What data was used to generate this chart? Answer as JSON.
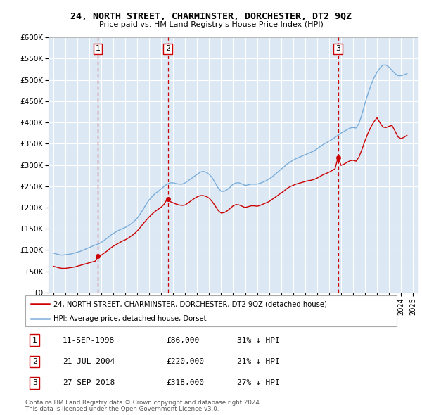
{
  "title": "24, NORTH STREET, CHARMINSTER, DORCHESTER, DT2 9QZ",
  "subtitle": "Price paid vs. HM Land Registry's House Price Index (HPI)",
  "ylim": [
    0,
    600000
  ],
  "yticks": [
    0,
    50000,
    100000,
    150000,
    200000,
    250000,
    300000,
    350000,
    400000,
    450000,
    500000,
    550000,
    600000
  ],
  "ytick_labels": [
    "£0",
    "£50K",
    "£100K",
    "£150K",
    "£200K",
    "£250K",
    "£300K",
    "£350K",
    "£400K",
    "£450K",
    "£500K",
    "£550K",
    "£600K"
  ],
  "xlim_start": 1994.6,
  "xlim_end": 2025.4,
  "plot_bg_color": "#dce9f5",
  "grid_color": "#ffffff",
  "red_line_color": "#cc0000",
  "blue_line_color": "#7aacda",
  "vline_color": "#cc0000",
  "transactions": [
    {
      "num": 1,
      "date": "11-SEP-1998",
      "year": 1998.7,
      "price": 86000,
      "pct": "31%",
      "dir": "↓"
    },
    {
      "num": 2,
      "date": "21-JUL-2004",
      "year": 2004.55,
      "price": 220000,
      "pct": "21%",
      "dir": "↓"
    },
    {
      "num": 3,
      "date": "27-SEP-2018",
      "year": 2018.75,
      "price": 318000,
      "pct": "27%",
      "dir": "↓"
    }
  ],
  "legend_red_label": "24, NORTH STREET, CHARMINSTER, DORCHESTER, DT2 9QZ (detached house)",
  "legend_blue_label": "HPI: Average price, detached house, Dorset",
  "footer1": "Contains HM Land Registry data © Crown copyright and database right 2024.",
  "footer2": "This data is licensed under the Open Government Licence v3.0.",
  "hpi_years": [
    1995.0,
    1995.25,
    1995.5,
    1995.75,
    1996.0,
    1996.25,
    1996.5,
    1996.75,
    1997.0,
    1997.25,
    1997.5,
    1997.75,
    1998.0,
    1998.25,
    1998.5,
    1998.75,
    1999.0,
    1999.25,
    1999.5,
    1999.75,
    2000.0,
    2000.25,
    2000.5,
    2000.75,
    2001.0,
    2001.25,
    2001.5,
    2001.75,
    2002.0,
    2002.25,
    2002.5,
    2002.75,
    2003.0,
    2003.25,
    2003.5,
    2003.75,
    2004.0,
    2004.25,
    2004.5,
    2004.75,
    2005.0,
    2005.25,
    2005.5,
    2005.75,
    2006.0,
    2006.25,
    2006.5,
    2006.75,
    2007.0,
    2007.25,
    2007.5,
    2007.75,
    2008.0,
    2008.25,
    2008.5,
    2008.75,
    2009.0,
    2009.25,
    2009.5,
    2009.75,
    2010.0,
    2010.25,
    2010.5,
    2010.75,
    2011.0,
    2011.25,
    2011.5,
    2011.75,
    2012.0,
    2012.25,
    2012.5,
    2012.75,
    2013.0,
    2013.25,
    2013.5,
    2013.75,
    2014.0,
    2014.25,
    2014.5,
    2014.75,
    2015.0,
    2015.25,
    2015.5,
    2015.75,
    2016.0,
    2016.25,
    2016.5,
    2016.75,
    2017.0,
    2017.25,
    2017.5,
    2017.75,
    2018.0,
    2018.25,
    2018.5,
    2018.75,
    2019.0,
    2019.25,
    2019.5,
    2019.75,
    2020.0,
    2020.25,
    2020.5,
    2020.75,
    2021.0,
    2021.25,
    2021.5,
    2021.75,
    2022.0,
    2022.25,
    2022.5,
    2022.75,
    2023.0,
    2023.25,
    2023.5,
    2023.75,
    2024.0,
    2024.25,
    2024.5
  ],
  "hpi_values": [
    93000,
    91000,
    89000,
    88000,
    89000,
    90000,
    91000,
    93000,
    95000,
    97000,
    100000,
    103000,
    106000,
    109000,
    112000,
    114000,
    118000,
    123000,
    128000,
    134000,
    139000,
    143000,
    147000,
    150000,
    153000,
    157000,
    162000,
    168000,
    175000,
    185000,
    196000,
    208000,
    218000,
    226000,
    233000,
    238000,
    244000,
    250000,
    255000,
    258000,
    258000,
    256000,
    255000,
    255000,
    258000,
    263000,
    268000,
    273000,
    278000,
    283000,
    285000,
    283000,
    278000,
    270000,
    258000,
    246000,
    238000,
    238000,
    242000,
    248000,
    255000,
    258000,
    258000,
    255000,
    252000,
    253000,
    255000,
    255000,
    255000,
    257000,
    260000,
    263000,
    267000,
    272000,
    278000,
    284000,
    290000,
    296000,
    302000,
    307000,
    311000,
    315000,
    318000,
    321000,
    324000,
    327000,
    330000,
    333000,
    338000,
    343000,
    348000,
    352000,
    356000,
    360000,
    365000,
    370000,
    375000,
    379000,
    383000,
    387000,
    388000,
    387000,
    398000,
    420000,
    445000,
    468000,
    488000,
    505000,
    518000,
    528000,
    535000,
    535000,
    530000,
    522000,
    515000,
    510000,
    510000,
    512000,
    515000
  ],
  "red_years": [
    1995.0,
    1995.25,
    1995.5,
    1995.75,
    1996.0,
    1996.25,
    1996.5,
    1996.75,
    1997.0,
    1997.25,
    1997.5,
    1997.75,
    1998.0,
    1998.25,
    1998.5,
    1998.75,
    1999.0,
    1999.25,
    1999.5,
    1999.75,
    2000.0,
    2000.25,
    2000.5,
    2000.75,
    2001.0,
    2001.25,
    2001.5,
    2001.75,
    2002.0,
    2002.25,
    2002.5,
    2002.75,
    2003.0,
    2003.25,
    2003.5,
    2003.75,
    2004.0,
    2004.25,
    2004.5,
    2004.75,
    2005.0,
    2005.25,
    2005.5,
    2005.75,
    2006.0,
    2006.25,
    2006.5,
    2006.75,
    2007.0,
    2007.25,
    2007.5,
    2007.75,
    2008.0,
    2008.25,
    2008.5,
    2008.75,
    2009.0,
    2009.25,
    2009.5,
    2009.75,
    2010.0,
    2010.25,
    2010.5,
    2010.75,
    2011.0,
    2011.25,
    2011.5,
    2011.75,
    2012.0,
    2012.25,
    2012.5,
    2012.75,
    2013.0,
    2013.25,
    2013.5,
    2013.75,
    2014.0,
    2014.25,
    2014.5,
    2014.75,
    2015.0,
    2015.25,
    2015.5,
    2015.75,
    2016.0,
    2016.25,
    2016.5,
    2016.75,
    2017.0,
    2017.25,
    2017.5,
    2017.75,
    2018.0,
    2018.25,
    2018.5,
    2018.75,
    2019.0,
    2019.25,
    2019.5,
    2019.75,
    2020.0,
    2020.25,
    2020.5,
    2020.75,
    2021.0,
    2021.25,
    2021.5,
    2021.75,
    2022.0,
    2022.25,
    2022.5,
    2022.75,
    2023.0,
    2023.25,
    2023.5,
    2023.75,
    2024.0,
    2024.25,
    2024.5
  ],
  "red_values": [
    62000,
    60000,
    58000,
    57000,
    57000,
    58000,
    59000,
    60000,
    62000,
    64000,
    66000,
    68000,
    70000,
    72000,
    74000,
    86000,
    88000,
    93000,
    98000,
    104000,
    109000,
    113000,
    117000,
    121000,
    124000,
    128000,
    133000,
    138000,
    145000,
    153000,
    162000,
    170000,
    178000,
    185000,
    191000,
    196000,
    201000,
    208000,
    220000,
    214000,
    211000,
    208000,
    206000,
    205000,
    206000,
    211000,
    216000,
    221000,
    225000,
    228000,
    228000,
    226000,
    222000,
    214000,
    204000,
    193000,
    187000,
    188000,
    192000,
    198000,
    204000,
    207000,
    206000,
    203000,
    200000,
    202000,
    204000,
    204000,
    203000,
    205000,
    208000,
    211000,
    214000,
    219000,
    224000,
    229000,
    234000,
    239000,
    245000,
    249000,
    252000,
    255000,
    257000,
    259000,
    261000,
    263000,
    264000,
    266000,
    269000,
    273000,
    277000,
    280000,
    283000,
    287000,
    291000,
    318000,
    299000,
    302000,
    306000,
    310000,
    311000,
    309000,
    319000,
    337000,
    357000,
    375000,
    390000,
    402000,
    411000,
    399000,
    389000,
    388000,
    391000,
    393000,
    380000,
    366000,
    362000,
    365000,
    370000
  ]
}
